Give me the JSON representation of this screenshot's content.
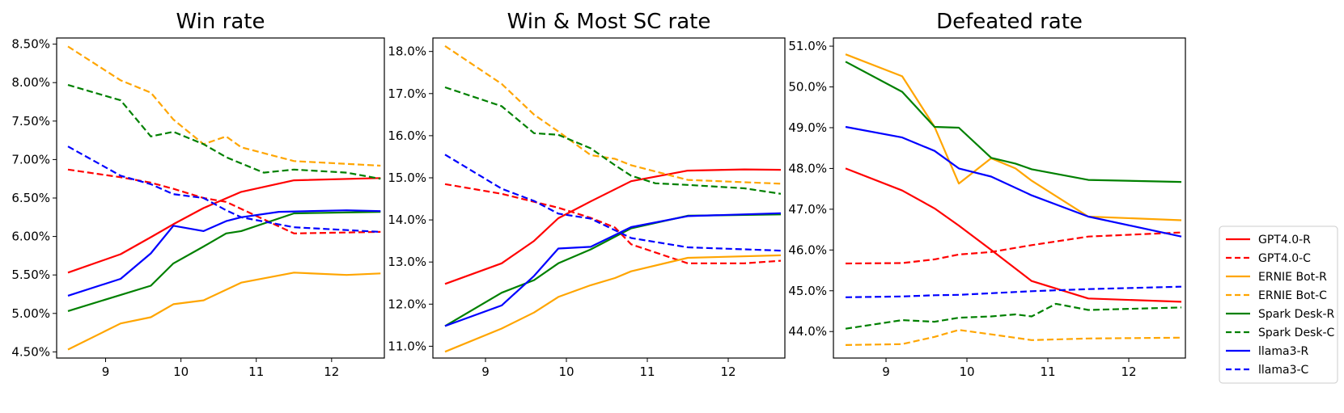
{
  "chart_data": [
    {
      "type": "line",
      "title": "Win rate",
      "x_ticks": [
        9,
        10,
        11,
        12
      ],
      "y_ticks": [
        "4.50%",
        "5.00%",
        "5.50%",
        "6.00%",
        "6.50%",
        "7.00%",
        "7.50%",
        "8.00%",
        "8.50%"
      ],
      "xlim": [
        8.35,
        12.7
      ],
      "ylim": [
        4.42,
        8.58
      ],
      "grid": false,
      "series": [
        {
          "name": "GPT4.0-R",
          "x": [
            8.5,
            9.2,
            9.6,
            9.9,
            10.3,
            10.8,
            11.5,
            12.65
          ],
          "y": [
            5.53,
            5.77,
            5.99,
            6.16,
            6.37,
            6.58,
            6.73,
            6.76
          ]
        },
        {
          "name": "GPT4.0-C",
          "x": [
            8.5,
            9.2,
            9.6,
            9.9,
            10.3,
            10.6,
            11.5,
            12.65
          ],
          "y": [
            6.87,
            6.77,
            6.7,
            6.62,
            6.5,
            6.45,
            6.04,
            6.06
          ]
        },
        {
          "name": "ERNIE Bot-R",
          "x": [
            8.5,
            9.2,
            9.6,
            9.9,
            10.3,
            10.8,
            11.5,
            12.2,
            12.65
          ],
          "y": [
            4.53,
            4.87,
            4.95,
            5.12,
            5.17,
            5.4,
            5.53,
            5.5,
            5.52
          ]
        },
        {
          "name": "ERNIE Bot-C",
          "x": [
            8.5,
            9.2,
            9.6,
            9.9,
            10.3,
            10.6,
            10.8,
            11.5,
            12.65
          ],
          "y": [
            8.47,
            8.03,
            7.87,
            7.52,
            7.2,
            7.3,
            7.16,
            6.98,
            6.92
          ]
        },
        {
          "name": "Spark Desk-R",
          "x": [
            8.5,
            9.2,
            9.6,
            9.9,
            10.3,
            10.6,
            10.8,
            11.5,
            12.65
          ],
          "y": [
            5.03,
            5.24,
            5.36,
            5.65,
            5.87,
            6.04,
            6.07,
            6.3,
            6.32
          ]
        },
        {
          "name": "Spark Desk-C",
          "x": [
            8.5,
            9.2,
            9.6,
            9.9,
            10.3,
            10.6,
            10.8,
            11.1,
            11.5,
            12.2,
            12.65
          ],
          "y": [
            7.97,
            7.77,
            7.3,
            7.36,
            7.2,
            7.03,
            6.95,
            6.83,
            6.87,
            6.83,
            6.75
          ]
        },
        {
          "name": "llama3-R",
          "x": [
            8.5,
            9.2,
            9.6,
            9.9,
            10.3,
            10.6,
            10.8,
            11.3,
            12.2,
            12.65
          ],
          "y": [
            5.23,
            5.45,
            5.78,
            6.14,
            6.07,
            6.2,
            6.25,
            6.32,
            6.34,
            6.33
          ]
        },
        {
          "name": "llama3-C",
          "x": [
            8.5,
            9.2,
            9.6,
            9.9,
            10.3,
            10.6,
            10.8,
            11.5,
            12.65
          ],
          "y": [
            7.17,
            6.79,
            6.68,
            6.55,
            6.5,
            6.34,
            6.25,
            6.12,
            6.06
          ]
        }
      ]
    },
    {
      "type": "line",
      "title": "Win & Most SC rate",
      "x_ticks": [
        9,
        10,
        11,
        12
      ],
      "y_ticks": [
        "11.0%",
        "12.0%",
        "13.0%",
        "14.0%",
        "15.0%",
        "16.0%",
        "17.0%",
        "18.0%"
      ],
      "xlim": [
        8.35,
        12.7
      ],
      "ylim": [
        10.72,
        18.32
      ],
      "grid": false,
      "series": [
        {
          "name": "GPT4.0-R",
          "x": [
            8.5,
            9.2,
            9.6,
            9.9,
            10.3,
            10.8,
            11.5,
            12.2,
            12.65
          ],
          "y": [
            12.48,
            12.97,
            13.5,
            14.04,
            14.44,
            14.92,
            15.17,
            15.2,
            15.19
          ]
        },
        {
          "name": "GPT4.0-C",
          "x": [
            8.5,
            9.2,
            9.6,
            9.9,
            10.3,
            10.6,
            10.8,
            11.5,
            12.2,
            12.65
          ],
          "y": [
            14.85,
            14.62,
            14.43,
            14.29,
            14.05,
            13.82,
            13.42,
            12.97,
            12.97,
            13.03
          ]
        },
        {
          "name": "ERNIE Bot-R",
          "x": [
            8.5,
            9.2,
            9.6,
            9.9,
            10.3,
            10.6,
            10.8,
            11.5,
            12.65
          ],
          "y": [
            10.87,
            11.42,
            11.8,
            12.17,
            12.45,
            12.62,
            12.78,
            13.1,
            13.16
          ]
        },
        {
          "name": "ERNIE Bot-C",
          "x": [
            8.5,
            9.2,
            9.6,
            9.9,
            10.3,
            10.6,
            10.8,
            11.5,
            12.65
          ],
          "y": [
            18.13,
            17.23,
            16.5,
            16.1,
            15.54,
            15.45,
            15.3,
            14.95,
            14.86
          ]
        },
        {
          "name": "Spark Desk-R",
          "x": [
            8.5,
            9.2,
            9.6,
            9.9,
            10.3,
            10.8,
            11.5,
            12.65
          ],
          "y": [
            11.48,
            12.27,
            12.57,
            12.97,
            13.3,
            13.8,
            14.1,
            14.13
          ]
        },
        {
          "name": "Spark Desk-C",
          "x": [
            8.5,
            9.2,
            9.6,
            9.9,
            10.3,
            10.6,
            10.8,
            11.1,
            11.5,
            12.2,
            12.65
          ],
          "y": [
            17.15,
            16.7,
            16.06,
            16.02,
            15.7,
            15.3,
            15.05,
            14.87,
            14.83,
            14.75,
            14.62
          ]
        },
        {
          "name": "llama3-R",
          "x": [
            8.5,
            9.2,
            9.6,
            9.9,
            10.3,
            10.8,
            11.5,
            12.65
          ],
          "y": [
            11.48,
            11.97,
            12.67,
            13.32,
            13.36,
            13.83,
            14.09,
            14.16
          ]
        },
        {
          "name": "llama3-C",
          "x": [
            8.5,
            9.2,
            9.6,
            9.9,
            10.3,
            10.8,
            11.5,
            12.65
          ],
          "y": [
            15.55,
            14.74,
            14.45,
            14.15,
            14.03,
            13.57,
            13.35,
            13.27
          ]
        }
      ]
    },
    {
      "type": "line",
      "title": "Defeated rate",
      "x_ticks": [
        9,
        10,
        11,
        12
      ],
      "y_ticks": [
        "44.0%",
        "45.0%",
        "46.0%",
        "47.0%",
        "48.0%",
        "49.0%",
        "50.0%",
        "51.0%"
      ],
      "xlim": [
        8.35,
        12.7
      ],
      "ylim": [
        43.35,
        51.2
      ],
      "grid": false,
      "series": [
        {
          "name": "GPT4.0-R",
          "x": [
            8.5,
            9.2,
            9.6,
            9.9,
            10.3,
            10.8,
            11.5,
            12.65
          ],
          "y": [
            48.0,
            47.46,
            47.02,
            46.6,
            46.0,
            45.24,
            44.81,
            44.73
          ]
        },
        {
          "name": "GPT4.0-C",
          "x": [
            8.5,
            9.2,
            9.6,
            9.9,
            10.3,
            10.8,
            11.5,
            12.65
          ],
          "y": [
            45.67,
            45.68,
            45.77,
            45.89,
            45.95,
            46.12,
            46.33,
            46.43
          ]
        },
        {
          "name": "ERNIE Bot-R",
          "x": [
            8.5,
            9.2,
            9.6,
            9.9,
            10.3,
            10.6,
            10.8,
            11.5,
            12.65
          ],
          "y": [
            50.8,
            50.26,
            49.02,
            47.63,
            48.25,
            48.0,
            47.7,
            46.82,
            46.73
          ]
        },
        {
          "name": "ERNIE Bot-C",
          "x": [
            8.5,
            9.2,
            9.6,
            9.9,
            10.3,
            10.8,
            11.5,
            12.65
          ],
          "y": [
            43.67,
            43.69,
            43.87,
            44.04,
            43.93,
            43.79,
            43.83,
            43.85
          ]
        },
        {
          "name": "Spark Desk-R",
          "x": [
            8.5,
            9.2,
            9.6,
            9.9,
            10.3,
            10.6,
            10.8,
            11.5,
            12.65
          ],
          "y": [
            50.62,
            49.88,
            49.02,
            49.0,
            48.26,
            48.12,
            47.98,
            47.72,
            47.67
          ]
        },
        {
          "name": "Spark Desk-C",
          "x": [
            8.5,
            9.2,
            9.6,
            9.9,
            10.3,
            10.6,
            10.8,
            11.1,
            11.5,
            12.65
          ],
          "y": [
            44.07,
            44.28,
            44.24,
            44.34,
            44.37,
            44.42,
            44.37,
            44.68,
            44.53,
            44.59
          ]
        },
        {
          "name": "llama3-R",
          "x": [
            8.5,
            9.2,
            9.6,
            9.9,
            10.3,
            10.8,
            11.5,
            12.65
          ],
          "y": [
            49.02,
            48.76,
            48.43,
            48.0,
            47.8,
            47.34,
            46.82,
            46.33
          ]
        },
        {
          "name": "llama3-C",
          "x": [
            8.5,
            9.2,
            9.6,
            9.9,
            10.3,
            10.8,
            11.5,
            12.65
          ],
          "y": [
            44.84,
            44.86,
            44.89,
            44.9,
            44.94,
            44.99,
            45.04,
            45.1
          ]
        }
      ]
    }
  ],
  "legend": {
    "placement": "right",
    "entries": [
      {
        "label": "GPT4.0-R",
        "color": "#ff0000",
        "dashed": false
      },
      {
        "label": "GPT4.0-C",
        "color": "#ff0000",
        "dashed": true
      },
      {
        "label": "ERNIE Bot-R",
        "color": "#ffa500",
        "dashed": false
      },
      {
        "label": "ERNIE Bot-C",
        "color": "#ffa500",
        "dashed": true
      },
      {
        "label": "Spark Desk-R",
        "color": "#008000",
        "dashed": false
      },
      {
        "label": "Spark Desk-C",
        "color": "#008000",
        "dashed": true
      },
      {
        "label": "llama3-R",
        "color": "#0000ff",
        "dashed": false
      },
      {
        "label": "llama3-C",
        "color": "#0000ff",
        "dashed": true
      }
    ]
  }
}
